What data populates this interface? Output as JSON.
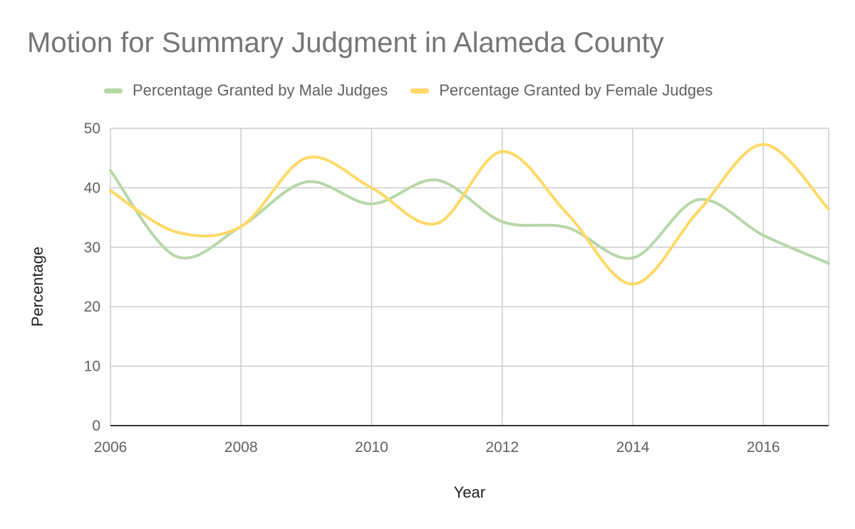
{
  "chart_data": {
    "type": "line",
    "title": "Motion for Summary Judgment in Alameda County",
    "xlabel": "Year",
    "ylabel": "Percentage",
    "x": [
      2006,
      2007,
      2008,
      2009,
      2010,
      2011,
      2012,
      2013,
      2014,
      2015,
      2016,
      2017
    ],
    "xlim": [
      2006,
      2017
    ],
    "ylim": [
      0,
      50
    ],
    "x_ticks": [
      2006,
      2008,
      2010,
      2012,
      2014,
      2016
    ],
    "y_ticks": [
      0,
      10,
      20,
      30,
      40,
      50
    ],
    "grid": true,
    "legend_position": "top",
    "smooth": true,
    "series": [
      {
        "name": "Percentage Granted by Male Judges",
        "color": "#b6d7a8",
        "values": [
          42.9,
          28.5,
          33.5,
          41.0,
          37.3,
          41.3,
          34.3,
          33.3,
          28.2,
          38.0,
          32.0,
          27.3
        ]
      },
      {
        "name": "Percentage Granted by Female Judges",
        "color": "#ffd966",
        "values": [
          39.5,
          32.6,
          33.5,
          45.0,
          40.0,
          34.0,
          46.1,
          35.6,
          23.8,
          36.0,
          47.3,
          36.4
        ]
      }
    ]
  }
}
